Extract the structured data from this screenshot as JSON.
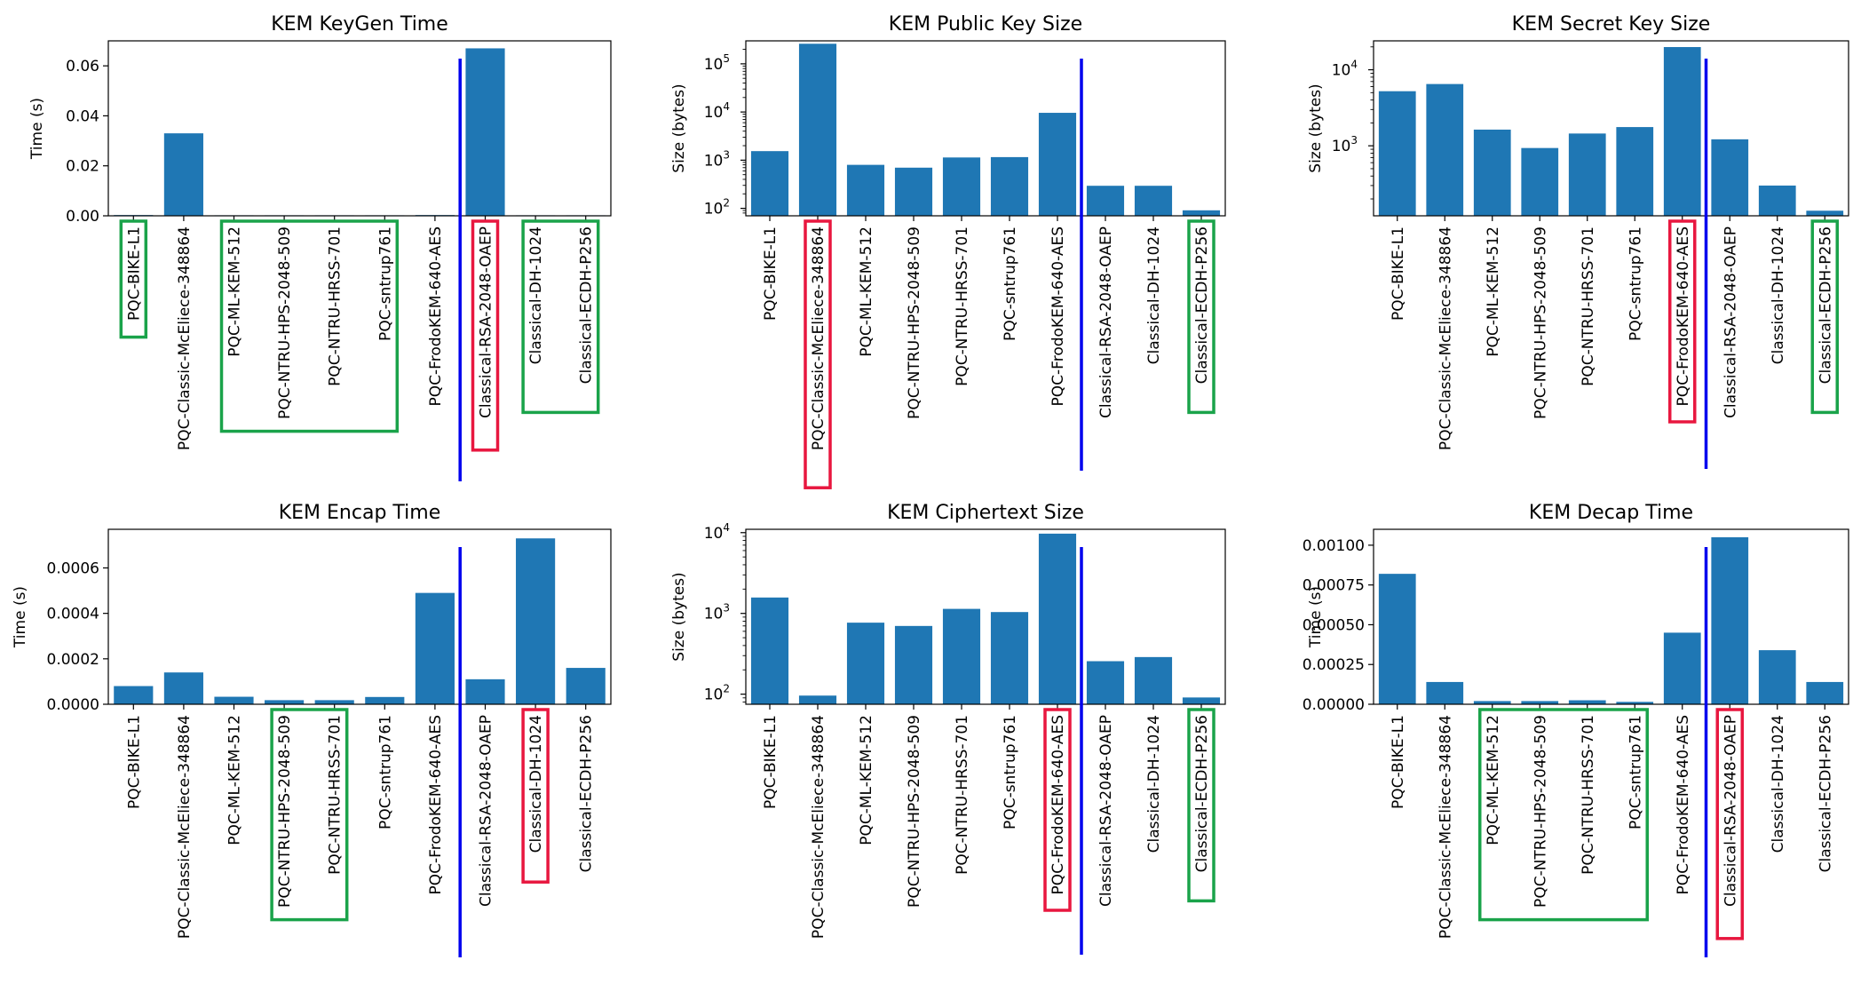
{
  "chart_data": [
    {
      "type": "bar",
      "title": "KEM KeyGen Time",
      "ylabel": "Time (s)",
      "yscale": "linear",
      "ylim": [
        0,
        0.07
      ],
      "yticks": [
        0.0,
        0.02,
        0.04,
        0.06
      ],
      "ytick_labels": [
        "0.00",
        "0.02",
        "0.04",
        "0.06"
      ],
      "categories": [
        "PQC-BIKE-L1",
        "PQC-Classic-McEliece-348864",
        "PQC-ML-KEM-512",
        "PQC-NTRU-HPS-2048-509",
        "PQC-NTRU-HRSS-701",
        "PQC-sntrup761",
        "PQC-FrodoKEM-640-AES",
        "Classical-RSA-2048-OAEP",
        "Classical-DH-1024",
        "Classical-ECDH-P256"
      ],
      "values": [
        0.0003,
        0.033,
        0.0002,
        0.0002,
        0.0002,
        0.0002,
        0.0003,
        0.067,
        0.0002,
        0.0002
      ],
      "separator_after_index": 6,
      "separator_color": "#0000ee",
      "bar_color": "#1f77b4",
      "highlights": [
        {
          "color": "green",
          "start": 0,
          "end": 0
        },
        {
          "color": "green",
          "start": 2,
          "end": 5
        },
        {
          "color": "red",
          "start": 7,
          "end": 7
        },
        {
          "color": "green",
          "start": 8,
          "end": 9
        }
      ]
    },
    {
      "type": "bar",
      "title": "KEM Public Key Size",
      "ylabel": "Size (bytes)",
      "yscale": "log",
      "ylim": [
        70,
        300000
      ],
      "yticks": [
        100,
        1000,
        10000,
        100000
      ],
      "ytick_base": "10",
      "ytick_exponents": [
        "2",
        "3",
        "4",
        "5"
      ],
      "categories": [
        "PQC-BIKE-L1",
        "PQC-Classic-McEliece-348864",
        "PQC-ML-KEM-512",
        "PQC-NTRU-HPS-2048-509",
        "PQC-NTRU-HRSS-701",
        "PQC-sntrup761",
        "PQC-FrodoKEM-640-AES",
        "Classical-RSA-2048-OAEP",
        "Classical-DH-1024",
        "Classical-ECDH-P256"
      ],
      "values": [
        1541,
        261120,
        800,
        699,
        1138,
        1158,
        9616,
        294,
        294,
        91
      ],
      "separator_after_index": 6,
      "separator_color": "#0000ee",
      "bar_color": "#1f77b4",
      "highlights": [
        {
          "color": "red",
          "start": 1,
          "end": 1
        },
        {
          "color": "green",
          "start": 9,
          "end": 9
        }
      ]
    },
    {
      "type": "bar",
      "title": "KEM Secret Key Size",
      "ylabel": "Size (bytes)",
      "yscale": "log",
      "ylim": [
        120,
        24000
      ],
      "yticks": [
        1000,
        10000
      ],
      "ytick_base": "10",
      "ytick_exponents": [
        "3",
        "4"
      ],
      "categories": [
        "PQC-BIKE-L1",
        "PQC-Classic-McEliece-348864",
        "PQC-ML-KEM-512",
        "PQC-NTRU-HPS-2048-509",
        "PQC-NTRU-HRSS-701",
        "PQC-sntrup761",
        "PQC-FrodoKEM-640-AES",
        "Classical-RSA-2048-OAEP",
        "Classical-DH-1024",
        "Classical-ECDH-P256"
      ],
      "values": [
        5223,
        6492,
        1632,
        935,
        1450,
        1763,
        19888,
        1217,
        300,
        140
      ],
      "separator_after_index": 6,
      "separator_color": "#0000ee",
      "bar_color": "#1f77b4",
      "highlights": [
        {
          "color": "red",
          "start": 6,
          "end": 6
        },
        {
          "color": "green",
          "start": 9,
          "end": 9
        }
      ]
    },
    {
      "type": "bar",
      "title": "KEM Encap Time",
      "ylabel": "Time (s)",
      "yscale": "linear",
      "ylim": [
        0,
        0.00077
      ],
      "yticks": [
        0.0,
        0.0002,
        0.0004,
        0.0006
      ],
      "ytick_labels": [
        "0.0000",
        "0.0002",
        "0.0004",
        "0.0006"
      ],
      "categories": [
        "PQC-BIKE-L1",
        "PQC-Classic-McEliece-348864",
        "PQC-ML-KEM-512",
        "PQC-NTRU-HPS-2048-509",
        "PQC-NTRU-HRSS-701",
        "PQC-sntrup761",
        "PQC-FrodoKEM-640-AES",
        "Classical-RSA-2048-OAEP",
        "Classical-DH-1024",
        "Classical-ECDH-P256"
      ],
      "values": [
        8e-05,
        0.00014,
        3.3e-05,
        1.8e-05,
        1.8e-05,
        3.2e-05,
        0.00049,
        0.00011,
        0.00073,
        0.00016
      ],
      "separator_after_index": 6,
      "separator_color": "#0000ee",
      "bar_color": "#1f77b4",
      "highlights": [
        {
          "color": "green",
          "start": 3,
          "end": 4
        },
        {
          "color": "red",
          "start": 8,
          "end": 8
        }
      ]
    },
    {
      "type": "bar",
      "title": "KEM Ciphertext Size",
      "ylabel": "Size (bytes)",
      "yscale": "log",
      "ylim": [
        75,
        11000
      ],
      "yticks": [
        100,
        1000,
        10000
      ],
      "ytick_base": "10",
      "ytick_exponents": [
        "2",
        "3",
        "4"
      ],
      "categories": [
        "PQC-BIKE-L1",
        "PQC-Classic-McEliece-348864",
        "PQC-ML-KEM-512",
        "PQC-NTRU-HPS-2048-509",
        "PQC-NTRU-HRSS-701",
        "PQC-sntrup761",
        "PQC-FrodoKEM-640-AES",
        "Classical-RSA-2048-OAEP",
        "Classical-DH-1024",
        "Classical-ECDH-P256"
      ],
      "values": [
        1573,
        96,
        768,
        699,
        1138,
        1039,
        9720,
        256,
        288,
        91
      ],
      "separator_after_index": 6,
      "separator_color": "#0000ee",
      "bar_color": "#1f77b4",
      "highlights": [
        {
          "color": "red",
          "start": 6,
          "end": 6
        },
        {
          "color": "green",
          "start": 9,
          "end": 9
        }
      ]
    },
    {
      "type": "bar",
      "title": "KEM Decap Time",
      "ylabel": "Time (s)",
      "yscale": "linear",
      "ylim": [
        0,
        0.0011
      ],
      "yticks": [
        0.0,
        0.00025,
        0.0005,
        0.00075,
        0.001
      ],
      "ytick_labels": [
        "0.00000",
        "0.00025",
        "0.00050",
        "0.00075",
        "0.00100"
      ],
      "categories": [
        "PQC-BIKE-L1",
        "PQC-Classic-McEliece-348864",
        "PQC-ML-KEM-512",
        "PQC-NTRU-HPS-2048-509",
        "PQC-NTRU-HRSS-701",
        "PQC-sntrup761",
        "PQC-FrodoKEM-640-AES",
        "Classical-RSA-2048-OAEP",
        "Classical-DH-1024",
        "Classical-ECDH-P256"
      ],
      "values": [
        0.00082,
        0.00014,
        2e-05,
        2e-05,
        2.5e-05,
        1.5e-05,
        0.00045,
        0.00105,
        0.00034,
        0.00014
      ],
      "separator_after_index": 6,
      "separator_color": "#0000ee",
      "bar_color": "#1f77b4",
      "highlights": [
        {
          "color": "green",
          "start": 2,
          "end": 5
        },
        {
          "color": "red",
          "start": 7,
          "end": 7
        }
      ]
    }
  ]
}
